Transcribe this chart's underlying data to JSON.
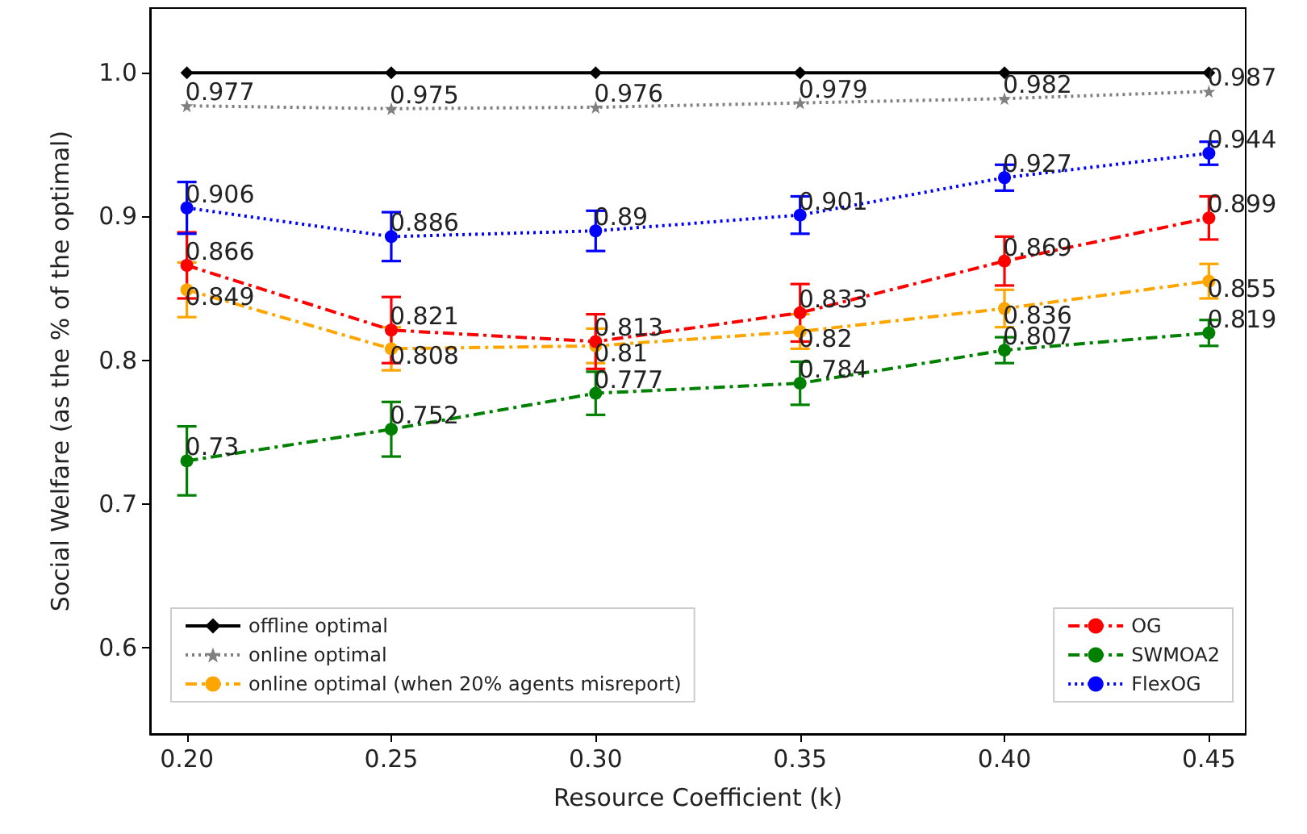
{
  "chart_data": {
    "type": "line",
    "xlabel": "Resource Coefficient (k)",
    "ylabel": "Social Welfare (as the % of the optimal)",
    "x": [
      0.2,
      0.25,
      0.3,
      0.35,
      0.4,
      0.45
    ],
    "xlim": [
      0.191,
      0.459
    ],
    "xticks": [
      {
        "value": 0.2,
        "label": "0.20"
      },
      {
        "value": 0.25,
        "label": "0.25"
      },
      {
        "value": 0.3,
        "label": "0.30"
      },
      {
        "value": 0.35,
        "label": "0.35"
      },
      {
        "value": 0.4,
        "label": "0.40"
      },
      {
        "value": 0.45,
        "label": "0.45"
      }
    ],
    "ylim": [
      0.54,
      1.045
    ],
    "yticks": [
      0.6,
      0.7,
      0.8,
      0.9,
      {
        "value": 1.0,
        "label": "1.0"
      }
    ],
    "grid": false,
    "legend": "bottom",
    "series": [
      {
        "name": "offline optimal",
        "color": "#000000",
        "marker": "diamond",
        "line_style": "solid",
        "values": [
          1.0,
          1.0,
          1.0,
          1.0,
          1.0,
          1.0
        ]
      },
      {
        "name": "online optimal",
        "color": "#808080",
        "marker": "star",
        "line_style": "dotted",
        "values": [
          0.977,
          0.975,
          0.976,
          0.979,
          0.982,
          0.987
        ],
        "value_labels": [
          "0.977",
          "0.975",
          "0.976",
          "0.979",
          "0.982",
          "0.987"
        ]
      },
      {
        "name": "online optimal (when 20% agents misreport)",
        "color": "#ffa500",
        "marker": "circle",
        "line_style": "dashed",
        "values": [
          0.849,
          0.808,
          0.81,
          0.82,
          0.836,
          0.855
        ],
        "errors": [
          0.019,
          0.015,
          0.012,
          0.012,
          0.013,
          0.012
        ],
        "value_labels": [
          "0.849",
          "0.808",
          "0.81",
          "0.82",
          "0.836",
          "0.855"
        ]
      },
      {
        "name": "OG",
        "color": "#ff0000",
        "marker": "circle",
        "line_style": "dashed",
        "values": [
          0.866,
          0.821,
          0.813,
          0.833,
          0.869,
          0.899
        ],
        "errors": [
          0.023,
          0.023,
          0.019,
          0.02,
          0.017,
          0.015
        ],
        "value_labels": [
          "0.866",
          "0.821",
          "0.813",
          "0.833",
          "0.869",
          "0.899"
        ]
      },
      {
        "name": "SWMOA2",
        "color": "#008000",
        "marker": "circle",
        "line_style": "dashed",
        "values": [
          0.73,
          0.752,
          0.777,
          0.784,
          0.807,
          0.819
        ],
        "errors": [
          0.024,
          0.019,
          0.015,
          0.015,
          0.009,
          0.009
        ],
        "value_labels": [
          "0.73",
          "0.752",
          "0.777",
          "0.784",
          "0.807",
          "0.819"
        ]
      },
      {
        "name": "FlexOG",
        "color": "#0000ff",
        "marker": "circle",
        "line_style": "dotted",
        "values": [
          0.906,
          0.886,
          0.89,
          0.901,
          0.927,
          0.944
        ],
        "errors": [
          0.018,
          0.017,
          0.014,
          0.013,
          0.009,
          0.008
        ],
        "value_labels": [
          "0.906",
          "0.886",
          "0.89",
          "0.901",
          "0.927",
          "0.944"
        ]
      }
    ]
  }
}
